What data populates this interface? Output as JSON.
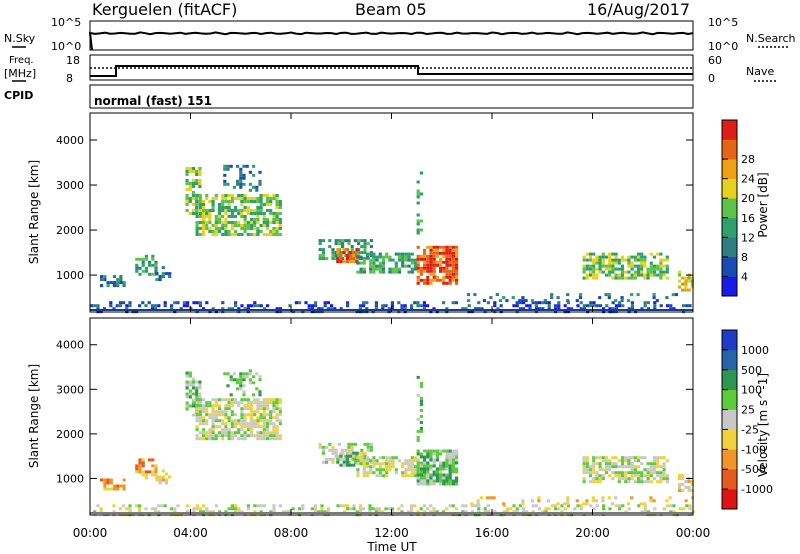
{
  "header": {
    "station": "Kerguelen (fitACF)",
    "beam": "Beam 05",
    "date": "16/Aug/2017"
  },
  "status_panels": {
    "nsky_label": "N.Sky",
    "nsearch_label": "N.Search",
    "freq_label_1": "Freq.",
    "freq_label_2": "[MHz]",
    "nave_label": "Nave",
    "cpid_label": "CPID",
    "cpid_value": "normal (fast) 151",
    "noise_ticks": [
      "10^5",
      "10^0"
    ],
    "freq_ticks": [
      "18",
      "8"
    ],
    "nave_ticks": [
      "60",
      "0"
    ]
  },
  "chart_data": [
    {
      "type": "heatmap",
      "name": "power",
      "ylabel": "Slant Range [km]",
      "xlabel": "",
      "yticks": [
        "1000",
        "2000",
        "3000",
        "4000"
      ],
      "ylim": [
        180,
        4600
      ],
      "xlim_hours": [
        0,
        24
      ],
      "colorbar_label": "Power [dB]",
      "colorbar_ticks": [
        "4",
        "8",
        "12",
        "16",
        "20",
        "24",
        "28"
      ],
      "colorbar_colors": [
        "#1a1ae6",
        "#1a4ab4",
        "#2e7d80",
        "#2ea06a",
        "#5cc24a",
        "#e6d21e",
        "#f0a014",
        "#e66414",
        "#dc1e14"
      ]
    },
    {
      "type": "heatmap",
      "name": "velocity",
      "ylabel": "Slant Range [km]",
      "xlabel": "Time UT",
      "yticks": [
        "1000",
        "2000",
        "3000",
        "4000"
      ],
      "ylim": [
        180,
        4600
      ],
      "xticks": [
        "00:00",
        "04:00",
        "08:00",
        "12:00",
        "16:00",
        "20:00",
        "00:00"
      ],
      "xlim_hours": [
        0,
        24
      ],
      "colorbar_label": "Velocity [m s^-1]",
      "colorbar_ticks": [
        "1000",
        "500",
        "100",
        "25",
        "-25",
        "-100",
        "-500",
        "-1000"
      ],
      "colorbar_colors": [
        "#1e3cc8",
        "#2864aa",
        "#2e9650",
        "#5ccc3c",
        "#c8c8c8",
        "#f0d23c",
        "#f09628",
        "#e65a1e",
        "#dc1414"
      ]
    }
  ]
}
